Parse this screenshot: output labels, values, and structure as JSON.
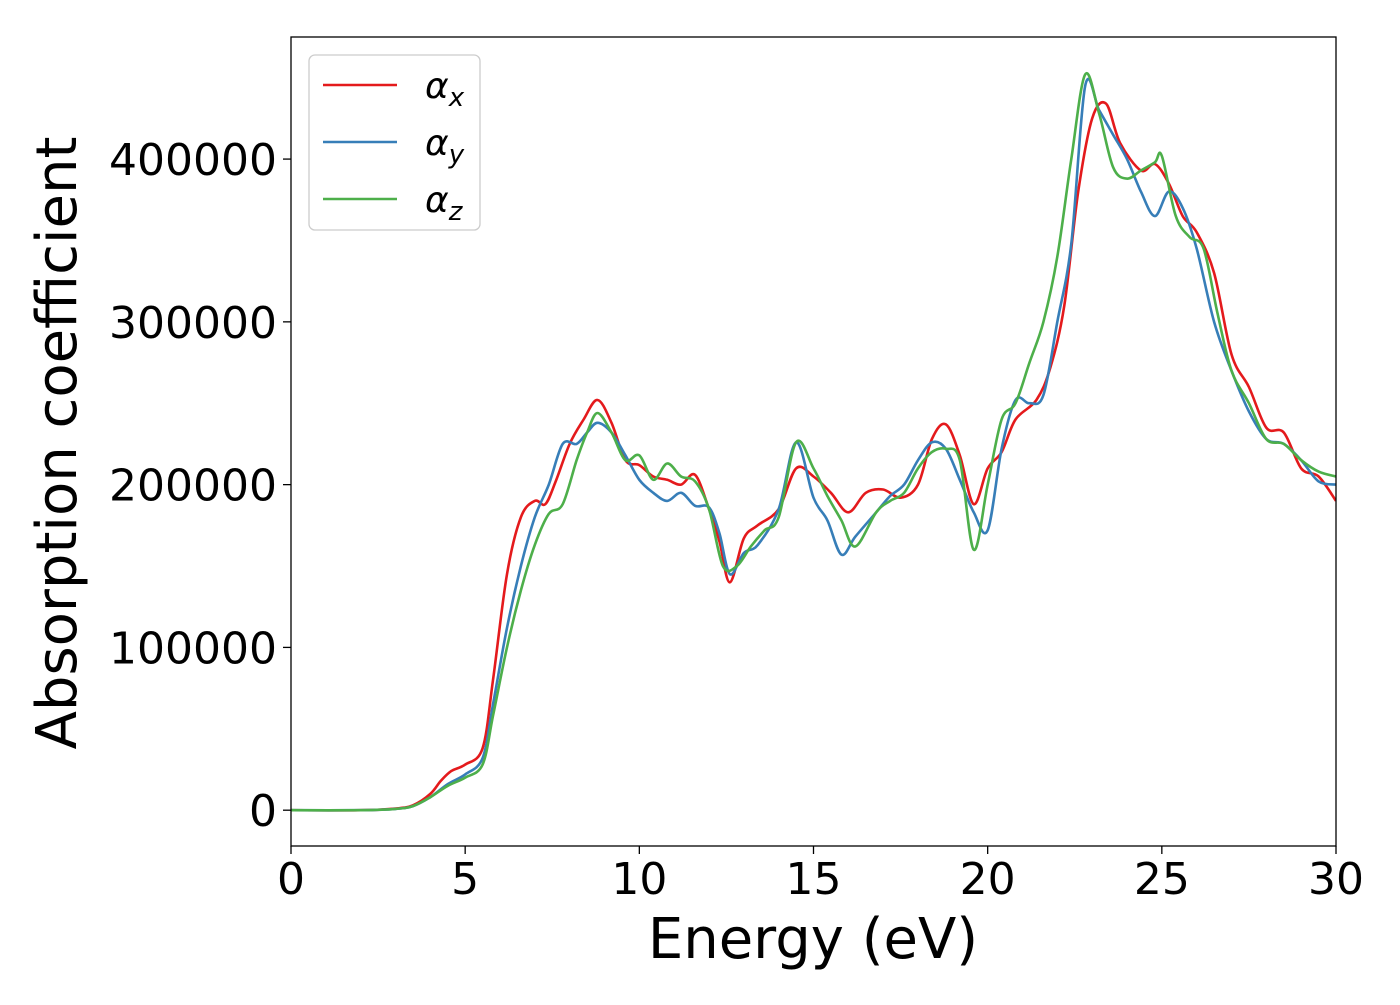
{
  "chart_data": {
    "type": "line",
    "title": "",
    "xlabel": "Energy (eV)",
    "ylabel": "Absorption coefficient",
    "xlim": [
      0,
      30
    ],
    "ylim": [
      -22000,
      475000
    ],
    "xticks": [
      0,
      5,
      10,
      15,
      20,
      25,
      30
    ],
    "xtick_labels": [
      "0",
      "5",
      "10",
      "15",
      "20",
      "25",
      "30"
    ],
    "yticks": [
      0,
      100000,
      200000,
      300000,
      400000
    ],
    "ytick_labels": [
      "0",
      "100000",
      "200000",
      "300000",
      "400000"
    ],
    "grid": false,
    "legend_position": "top-left",
    "series": [
      {
        "name": "αx",
        "symbol": "α",
        "subscript": "x",
        "color": "#e41a1c",
        "x": [
          0,
          2,
          3,
          3.5,
          4,
          4.3,
          4.6,
          5,
          5.5,
          5.8,
          6.2,
          6.6,
          7,
          7.3,
          7.6,
          8,
          8.4,
          8.8,
          9.2,
          9.6,
          10,
          10.4,
          10.8,
          11.2,
          11.6,
          12,
          12.3,
          12.6,
          13,
          13.4,
          14,
          14.5,
          15,
          15.5,
          16,
          16.5,
          17,
          17.5,
          18,
          18.4,
          18.8,
          19.2,
          19.6,
          20,
          20.4,
          20.8,
          21.4,
          21.8,
          22.2,
          22.6,
          23,
          23.4,
          23.8,
          24.4,
          24.8,
          25.2,
          25.6,
          26,
          26.5,
          27,
          27.5,
          28,
          28.5,
          29,
          29.5,
          30
        ],
        "y": [
          0,
          0,
          1000,
          3000,
          10000,
          18000,
          24000,
          28000,
          38000,
          80000,
          145000,
          180000,
          190000,
          188000,
          202000,
          225000,
          240000,
          252000,
          238000,
          215000,
          212000,
          205000,
          203000,
          200000,
          206000,
          185000,
          165000,
          140000,
          167000,
          175000,
          185000,
          210000,
          205000,
          195000,
          183000,
          195000,
          197000,
          192000,
          200000,
          228000,
          237000,
          218000,
          188000,
          210000,
          220000,
          240000,
          252000,
          272000,
          310000,
          380000,
          425000,
          434000,
          410000,
          393000,
          397000,
          385000,
          365000,
          355000,
          330000,
          280000,
          260000,
          235000,
          232000,
          210000,
          205000,
          190000
        ]
      },
      {
        "name": "αy",
        "symbol": "α",
        "subscript": "y",
        "color": "#377eb8",
        "x": [
          0,
          2,
          3,
          3.5,
          4,
          4.5,
          5,
          5.5,
          5.8,
          6.2,
          6.6,
          7,
          7.4,
          7.8,
          8.2,
          8.5,
          8.8,
          9.2,
          9.6,
          10,
          10.4,
          10.8,
          11.2,
          11.6,
          12,
          12.3,
          12.6,
          13,
          13.4,
          14,
          14.5,
          15,
          15.4,
          15.8,
          16.2,
          16.8,
          17.2,
          17.6,
          18,
          18.4,
          18.8,
          19.2,
          19.6,
          20,
          20.4,
          20.8,
          21.2,
          21.6,
          22,
          22.4,
          22.8,
          23.2,
          23.6,
          24,
          24.4,
          24.8,
          25.2,
          25.6,
          26,
          26.5,
          27,
          27.5,
          28,
          28.5,
          29,
          29.5,
          30
        ],
        "y": [
          0,
          0,
          800,
          2500,
          8000,
          16000,
          22000,
          32000,
          65000,
          112000,
          150000,
          180000,
          200000,
          225000,
          225000,
          232000,
          238000,
          232000,
          218000,
          203000,
          195000,
          190000,
          195000,
          187000,
          186000,
          170000,
          145000,
          158000,
          163000,
          185000,
          226000,
          192000,
          178000,
          157000,
          168000,
          183000,
          193000,
          200000,
          215000,
          226000,
          222000,
          203000,
          183000,
          172000,
          222000,
          252000,
          250000,
          255000,
          300000,
          348000,
          445000,
          430000,
          415000,
          400000,
          380000,
          365000,
          380000,
          370000,
          345000,
          300000,
          270000,
          245000,
          228000,
          225000,
          215000,
          202000,
          200000
        ]
      },
      {
        "name": "αz",
        "symbol": "α",
        "subscript": "z",
        "color": "#4daf4a",
        "x": [
          0,
          2,
          3,
          3.5,
          4,
          4.5,
          5,
          5.5,
          5.8,
          6.2,
          6.6,
          7,
          7.4,
          7.8,
          8.2,
          8.5,
          8.8,
          9.2,
          9.6,
          10,
          10.4,
          10.8,
          11.2,
          11.6,
          12,
          12.4,
          12.8,
          13.2,
          13.6,
          14,
          14.5,
          15,
          15.4,
          15.8,
          16.2,
          16.8,
          17.2,
          17.6,
          18,
          18.4,
          18.8,
          19.2,
          19.6,
          20,
          20.4,
          20.8,
          21.2,
          21.6,
          22,
          22.4,
          22.8,
          23.2,
          23.6,
          24,
          24.4,
          24.8,
          25,
          25.4,
          25.8,
          26.2,
          26.6,
          27,
          27.5,
          28,
          28.5,
          29,
          29.5,
          30
        ],
        "y": [
          0,
          0,
          800,
          2500,
          8000,
          15000,
          20000,
          28000,
          58000,
          100000,
          135000,
          163000,
          182000,
          188000,
          215000,
          232000,
          244000,
          232000,
          215000,
          218000,
          203000,
          213000,
          205000,
          202000,
          185000,
          150000,
          150000,
          162000,
          172000,
          180000,
          226000,
          210000,
          193000,
          178000,
          162000,
          183000,
          190000,
          195000,
          210000,
          220000,
          222000,
          215000,
          160000,
          200000,
          240000,
          250000,
          275000,
          300000,
          340000,
          400000,
          452000,
          428000,
          395000,
          388000,
          393000,
          398000,
          402000,
          365000,
          352000,
          345000,
          305000,
          270000,
          250000,
          228000,
          225000,
          215000,
          208000,
          205000
        ]
      }
    ]
  }
}
